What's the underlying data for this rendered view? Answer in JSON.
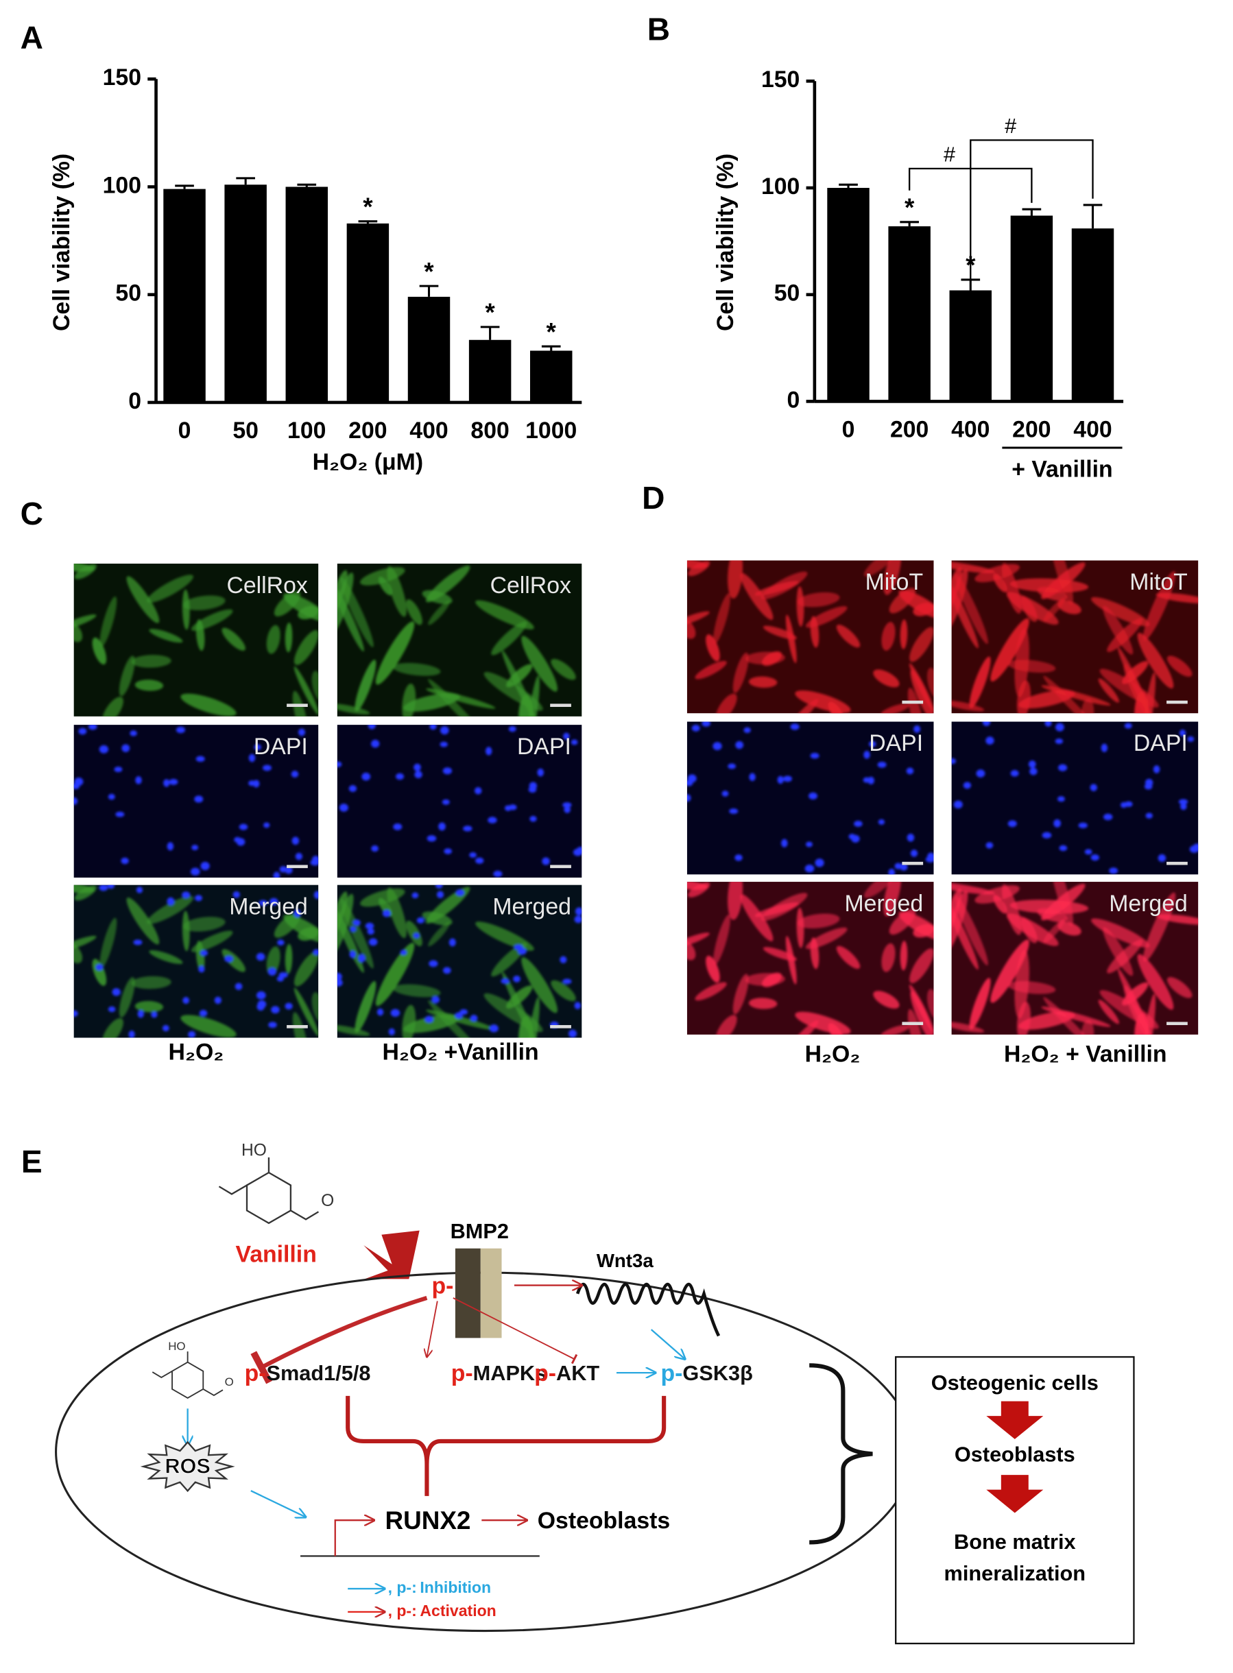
{
  "chart_data": [
    {
      "type": "bar",
      "label": "A",
      "ylabel": "Cell viability  (%)",
      "xlabel": "H₂O₂ (μM)",
      "categories": [
        "0",
        "50",
        "100",
        "200",
        "400",
        "800",
        "1000"
      ],
      "values": [
        99,
        101,
        100,
        83,
        49,
        29,
        24
      ],
      "errors": [
        1.5,
        3,
        1,
        1,
        5,
        6,
        2
      ],
      "markers": [
        null,
        null,
        null,
        "*",
        "*",
        "*",
        "*"
      ],
      "color": "#000000",
      "ylim": [
        0,
        150
      ],
      "yticks": [
        0,
        50,
        100,
        150
      ]
    },
    {
      "type": "bar",
      "label": "B",
      "ylabel": "Cell viability (%)",
      "group_label": "+ Vanillin",
      "categories": [
        "0",
        "200",
        "400",
        "200",
        "400"
      ],
      "values": [
        100,
        82,
        52,
        87,
        81
      ],
      "errors": [
        1.5,
        2,
        5,
        3,
        11
      ],
      "markers": [
        null,
        "*",
        "*",
        null,
        null
      ],
      "brackets": [
        "#",
        "#"
      ],
      "color": "#000000",
      "ylim": [
        0,
        150
      ],
      "yticks": [
        0,
        50,
        100,
        150
      ]
    }
  ],
  "panel_c": {
    "label": "C",
    "rows": [
      "CellRox",
      "DAPI",
      "Merged"
    ],
    "columns": [
      "H₂O₂",
      "H₂O₂ +Vanillin"
    ]
  },
  "panel_d": {
    "label": "D",
    "rows": [
      "MitoT",
      "DAPI",
      "Merged"
    ],
    "columns": [
      "H₂O₂",
      "H₂O₂ + Vanillin"
    ]
  },
  "diagram": {
    "label": "E",
    "vanillin": "Vanillin",
    "structure": {
      "hydroxyl": "HO",
      "carbonyl": "O"
    },
    "bmp2": "BMP2",
    "wnt3a": "Wnt3a",
    "receptor_p": "p-",
    "nodes": [
      {
        "prefix": "p-",
        "name": "Smad1/5/8"
      },
      {
        "prefix": "p-",
        "name": "MAPKs"
      },
      {
        "prefix": "p-",
        "name": "AKT"
      },
      {
        "prefix": "p-",
        "name": "GSK3β"
      }
    ],
    "ros": "ROS",
    "runx2": "RUNX2",
    "osteoblasts": "Osteoblasts",
    "legend": [
      {
        "symbol": ", p-:",
        "text": "Inhibition"
      },
      {
        "symbol": ", p-:",
        "text": "Activation"
      }
    ],
    "box": {
      "steps": [
        "Osteogenic cells",
        "Osteoblasts"
      ],
      "final": [
        "Bone matrix",
        "mineralization"
      ]
    }
  }
}
